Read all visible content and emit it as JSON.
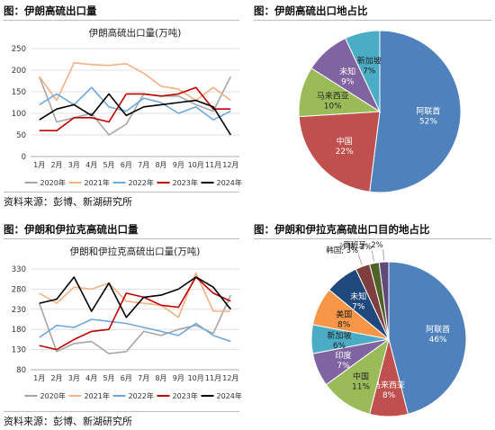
{
  "panels": [
    {
      "caption": "图：伊朗高硫出口量",
      "source": "资料来源：彭博、新湖研究所"
    },
    {
      "caption": "图：伊朗高硫出口地占比"
    },
    {
      "caption": "图：伊朗和伊拉克高硫出口量",
      "source": "资料来源：彭博、新湖研究所"
    },
    {
      "caption": "图：伊朗和伊拉克高硫出口目的地占比"
    }
  ],
  "chart_data": [
    {
      "type": "line",
      "title": "伊朗高硫出口量(万吨)",
      "categories": [
        "1月",
        "2月",
        "3月",
        "4月",
        "5月",
        "6月",
        "7月",
        "8月",
        "9月",
        "10月",
        "11月",
        "12月"
      ],
      "ylim": [
        0,
        250
      ],
      "yticks": [
        0,
        50,
        100,
        150,
        200,
        250
      ],
      "grid": true,
      "legend_position": "bottom",
      "series": [
        {
          "name": "2020年",
          "color": "#a6a6a6",
          "values": [
            185,
            80,
            90,
            100,
            50,
            75,
            145,
            140,
            140,
            120,
            105,
            185
          ]
        },
        {
          "name": "2021年",
          "color": "#f4b183",
          "values": [
            185,
            130,
            217,
            213,
            211,
            215,
            193,
            163,
            156,
            130,
            160,
            130
          ]
        },
        {
          "name": "2022年",
          "color": "#6fa8dc",
          "values": [
            120,
            145,
            120,
            160,
            115,
            105,
            135,
            125,
            100,
            115,
            85,
            105
          ]
        },
        {
          "name": "2023年",
          "color": "#c00000",
          "values": [
            60,
            60,
            90,
            90,
            80,
            145,
            145,
            140,
            145,
            160,
            110,
            110
          ]
        },
        {
          "name": "2024年",
          "color": "#000000",
          "values": [
            85,
            110,
            120,
            95,
            145,
            95,
            115,
            120,
            125,
            130,
            115,
            50
          ]
        }
      ]
    },
    {
      "type": "pie",
      "slices": [
        {
          "label": "阿联酋",
          "value": 52,
          "color": "#4f81bd"
        },
        {
          "label": "中国",
          "value": 22,
          "color": "#c0504d"
        },
        {
          "label": "马来西亚",
          "value": 10,
          "color": "#9bbb59"
        },
        {
          "label": "未知",
          "value": 9,
          "color": "#8064a2"
        },
        {
          "label": "新加坡",
          "value": 7,
          "color": "#4bacc6"
        }
      ]
    },
    {
      "type": "line",
      "title": "伊朗和伊拉克高硫出口量(万吨)",
      "categories": [
        "1月",
        "2月",
        "3月",
        "4月",
        "5月",
        "6月",
        "7月",
        "8月",
        "9月",
        "10月",
        "11月",
        "12月"
      ],
      "ylim": [
        80,
        330
      ],
      "yticks": [
        80,
        130,
        180,
        230,
        280,
        330
      ],
      "ytick_labels": [
        "80",
        "130",
        "180",
        "230",
        "280",
        "330"
      ],
      "grid": true,
      "legend_position": "bottom",
      "series": [
        {
          "name": "2020年",
          "color": "#a6a6a6",
          "values": [
            245,
            125,
            145,
            150,
            120,
            125,
            175,
            165,
            180,
            190,
            170,
            265
          ]
        },
        {
          "name": "2021年",
          "color": "#f4b183",
          "values": [
            270,
            245,
            285,
            280,
            295,
            250,
            245,
            240,
            210,
            320,
            225,
            225
          ]
        },
        {
          "name": "2022年",
          "color": "#6fa8dc",
          "values": [
            160,
            190,
            185,
            205,
            200,
            195,
            185,
            175,
            165,
            195,
            165,
            150
          ]
        },
        {
          "name": "2023年",
          "color": "#c00000",
          "values": [
            140,
            130,
            155,
            175,
            180,
            270,
            260,
            240,
            235,
            310,
            270,
            250
          ]
        },
        {
          "name": "2024年",
          "color": "#000000",
          "values": [
            245,
            255,
            310,
            225,
            295,
            210,
            260,
            265,
            280,
            310,
            285,
            230
          ]
        }
      ]
    },
    {
      "type": "pie",
      "slices": [
        {
          "label": "阿联酋",
          "value": 46,
          "color": "#4f81bd"
        },
        {
          "label": "马来西亚",
          "value": 8,
          "color": "#c0504d"
        },
        {
          "label": "中国",
          "value": 11,
          "color": "#9bbb59"
        },
        {
          "label": "印度",
          "value": 7,
          "color": "#8064a2"
        },
        {
          "label": "新加坡",
          "value": 6,
          "color": "#4bacc6"
        },
        {
          "label": "美国",
          "value": 8,
          "color": "#f79646"
        },
        {
          "label": "未知",
          "value": 7,
          "color": "#1f497d"
        },
        {
          "label": "韩国",
          "value": 3,
          "color": "#7f3f3f"
        },
        {
          "label": "沙特",
          "value": 2,
          "color": "#4f6228"
        },
        {
          "label": "西班牙",
          "value": 2,
          "color": "#604a7b"
        }
      ]
    }
  ]
}
